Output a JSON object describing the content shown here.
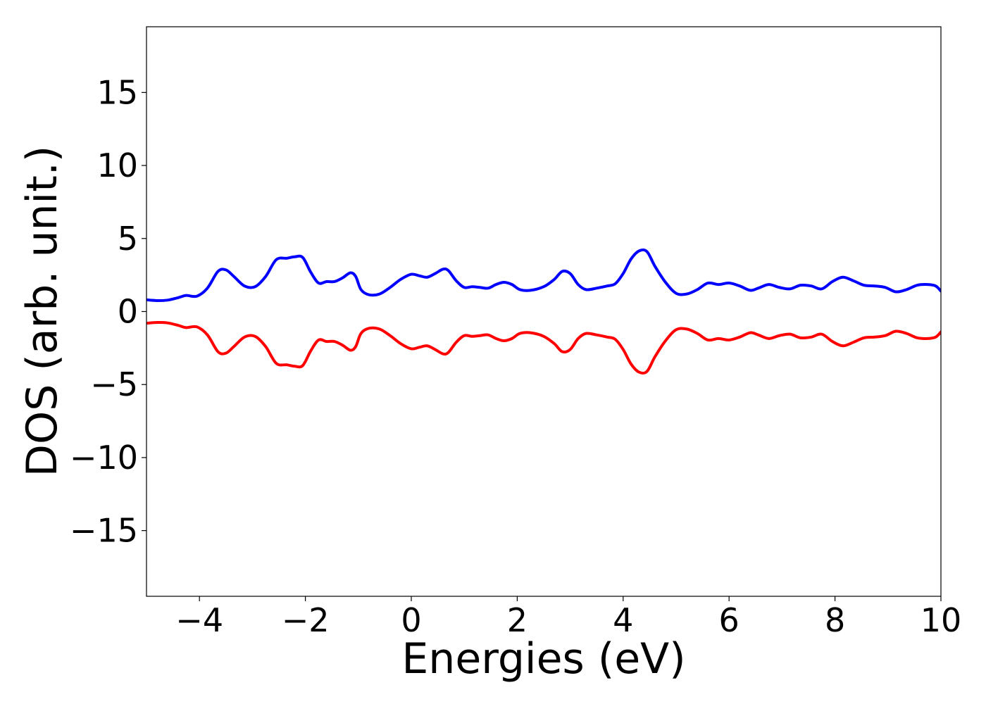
{
  "chart_data": {
    "type": "line",
    "title": "",
    "xlabel": "Energies (eV)",
    "ylabel": "DOS (arb. unit.)",
    "xlim": [
      -5,
      10
    ],
    "ylim": [
      -19.5,
      19.5
    ],
    "xticks": [
      -4,
      -2,
      0,
      2,
      4,
      6,
      8,
      10
    ],
    "xtick_labels": [
      "−4",
      "−2",
      "0",
      "2",
      "4",
      "6",
      "8",
      "10"
    ],
    "yticks": [
      -15,
      -10,
      -5,
      0,
      5,
      10,
      15
    ],
    "ytick_labels": [
      "−15",
      "−10",
      "−5",
      "0",
      "5",
      "10",
      "15"
    ],
    "grid": false,
    "legend": "none",
    "series": [
      {
        "color": "#0000ff",
        "x": [
          -5.0,
          -4.8,
          -4.6,
          -4.4,
          -4.25,
          -4.05,
          -3.85,
          -3.65,
          -3.5,
          -3.35,
          -3.15,
          -2.95,
          -2.75,
          -2.55,
          -2.35,
          -2.2,
          -2.05,
          -1.9,
          -1.75,
          -1.6,
          -1.45,
          -1.3,
          -1.15,
          -1.05,
          -0.95,
          -0.8,
          -0.6,
          -0.4,
          -0.2,
          0.0,
          0.15,
          0.3,
          0.45,
          0.6,
          0.7,
          0.85,
          1.0,
          1.15,
          1.3,
          1.45,
          1.6,
          1.75,
          1.9,
          2.05,
          2.25,
          2.5,
          2.7,
          2.85,
          3.0,
          3.15,
          3.3,
          3.5,
          3.7,
          3.85,
          4.0,
          4.15,
          4.3,
          4.45,
          4.6,
          4.8,
          5.0,
          5.2,
          5.4,
          5.6,
          5.8,
          6.0,
          6.2,
          6.4,
          6.55,
          6.75,
          6.95,
          7.15,
          7.35,
          7.55,
          7.75,
          7.95,
          8.15,
          8.35,
          8.55,
          8.75,
          8.95,
          9.15,
          9.35,
          9.55,
          9.75,
          9.9,
          10.0
        ],
        "values": [
          0.8,
          0.75,
          0.78,
          0.95,
          1.1,
          1.05,
          1.6,
          2.75,
          2.85,
          2.4,
          1.75,
          1.7,
          2.4,
          3.55,
          3.65,
          3.75,
          3.7,
          2.7,
          1.95,
          2.05,
          2.05,
          2.3,
          2.65,
          2.4,
          1.5,
          1.15,
          1.2,
          1.65,
          2.2,
          2.55,
          2.45,
          2.35,
          2.6,
          2.9,
          2.8,
          2.1,
          1.65,
          1.7,
          1.65,
          1.6,
          1.85,
          2.0,
          1.85,
          1.5,
          1.45,
          1.7,
          2.2,
          2.75,
          2.6,
          1.85,
          1.5,
          1.6,
          1.75,
          1.9,
          2.6,
          3.6,
          4.15,
          4.1,
          3.1,
          2.0,
          1.25,
          1.2,
          1.5,
          1.95,
          1.85,
          1.95,
          1.75,
          1.45,
          1.6,
          1.85,
          1.65,
          1.55,
          1.8,
          1.75,
          1.55,
          2.05,
          2.35,
          2.1,
          1.8,
          1.75,
          1.65,
          1.35,
          1.5,
          1.8,
          1.85,
          1.75,
          1.4
        ]
      },
      {
        "color": "#ff0000",
        "x": [
          -5.0,
          -4.8,
          -4.6,
          -4.4,
          -4.25,
          -4.05,
          -3.85,
          -3.65,
          -3.5,
          -3.35,
          -3.15,
          -2.95,
          -2.75,
          -2.55,
          -2.35,
          -2.2,
          -2.05,
          -1.9,
          -1.75,
          -1.6,
          -1.45,
          -1.3,
          -1.15,
          -1.05,
          -0.95,
          -0.8,
          -0.6,
          -0.4,
          -0.2,
          0.0,
          0.15,
          0.3,
          0.45,
          0.6,
          0.7,
          0.85,
          1.0,
          1.15,
          1.3,
          1.45,
          1.6,
          1.75,
          1.9,
          2.05,
          2.25,
          2.5,
          2.7,
          2.85,
          3.0,
          3.15,
          3.3,
          3.5,
          3.7,
          3.85,
          4.0,
          4.15,
          4.3,
          4.45,
          4.6,
          4.8,
          5.0,
          5.2,
          5.4,
          5.6,
          5.8,
          6.0,
          6.2,
          6.4,
          6.55,
          6.75,
          6.95,
          7.15,
          7.35,
          7.55,
          7.75,
          7.95,
          8.15,
          8.35,
          8.55,
          8.75,
          8.95,
          9.15,
          9.35,
          9.55,
          9.75,
          9.9,
          10.0
        ],
        "values": [
          -0.8,
          -0.75,
          -0.78,
          -0.95,
          -1.1,
          -1.05,
          -1.6,
          -2.75,
          -2.85,
          -2.4,
          -1.75,
          -1.7,
          -2.4,
          -3.55,
          -3.65,
          -3.75,
          -3.7,
          -2.7,
          -1.95,
          -2.05,
          -2.05,
          -2.3,
          -2.65,
          -2.4,
          -1.5,
          -1.15,
          -1.2,
          -1.65,
          -2.2,
          -2.55,
          -2.45,
          -2.35,
          -2.6,
          -2.9,
          -2.8,
          -2.1,
          -1.65,
          -1.7,
          -1.65,
          -1.6,
          -1.85,
          -2.0,
          -1.85,
          -1.5,
          -1.45,
          -1.7,
          -2.2,
          -2.75,
          -2.6,
          -1.85,
          -1.5,
          -1.6,
          -1.75,
          -1.9,
          -2.6,
          -3.6,
          -4.15,
          -4.1,
          -3.1,
          -2.0,
          -1.25,
          -1.2,
          -1.5,
          -1.95,
          -1.85,
          -1.95,
          -1.75,
          -1.45,
          -1.6,
          -1.85,
          -1.65,
          -1.55,
          -1.8,
          -1.75,
          -1.55,
          -2.05,
          -2.35,
          -2.1,
          -1.8,
          -1.75,
          -1.65,
          -1.35,
          -1.5,
          -1.8,
          -1.85,
          -1.75,
          -1.4
        ]
      }
    ]
  }
}
